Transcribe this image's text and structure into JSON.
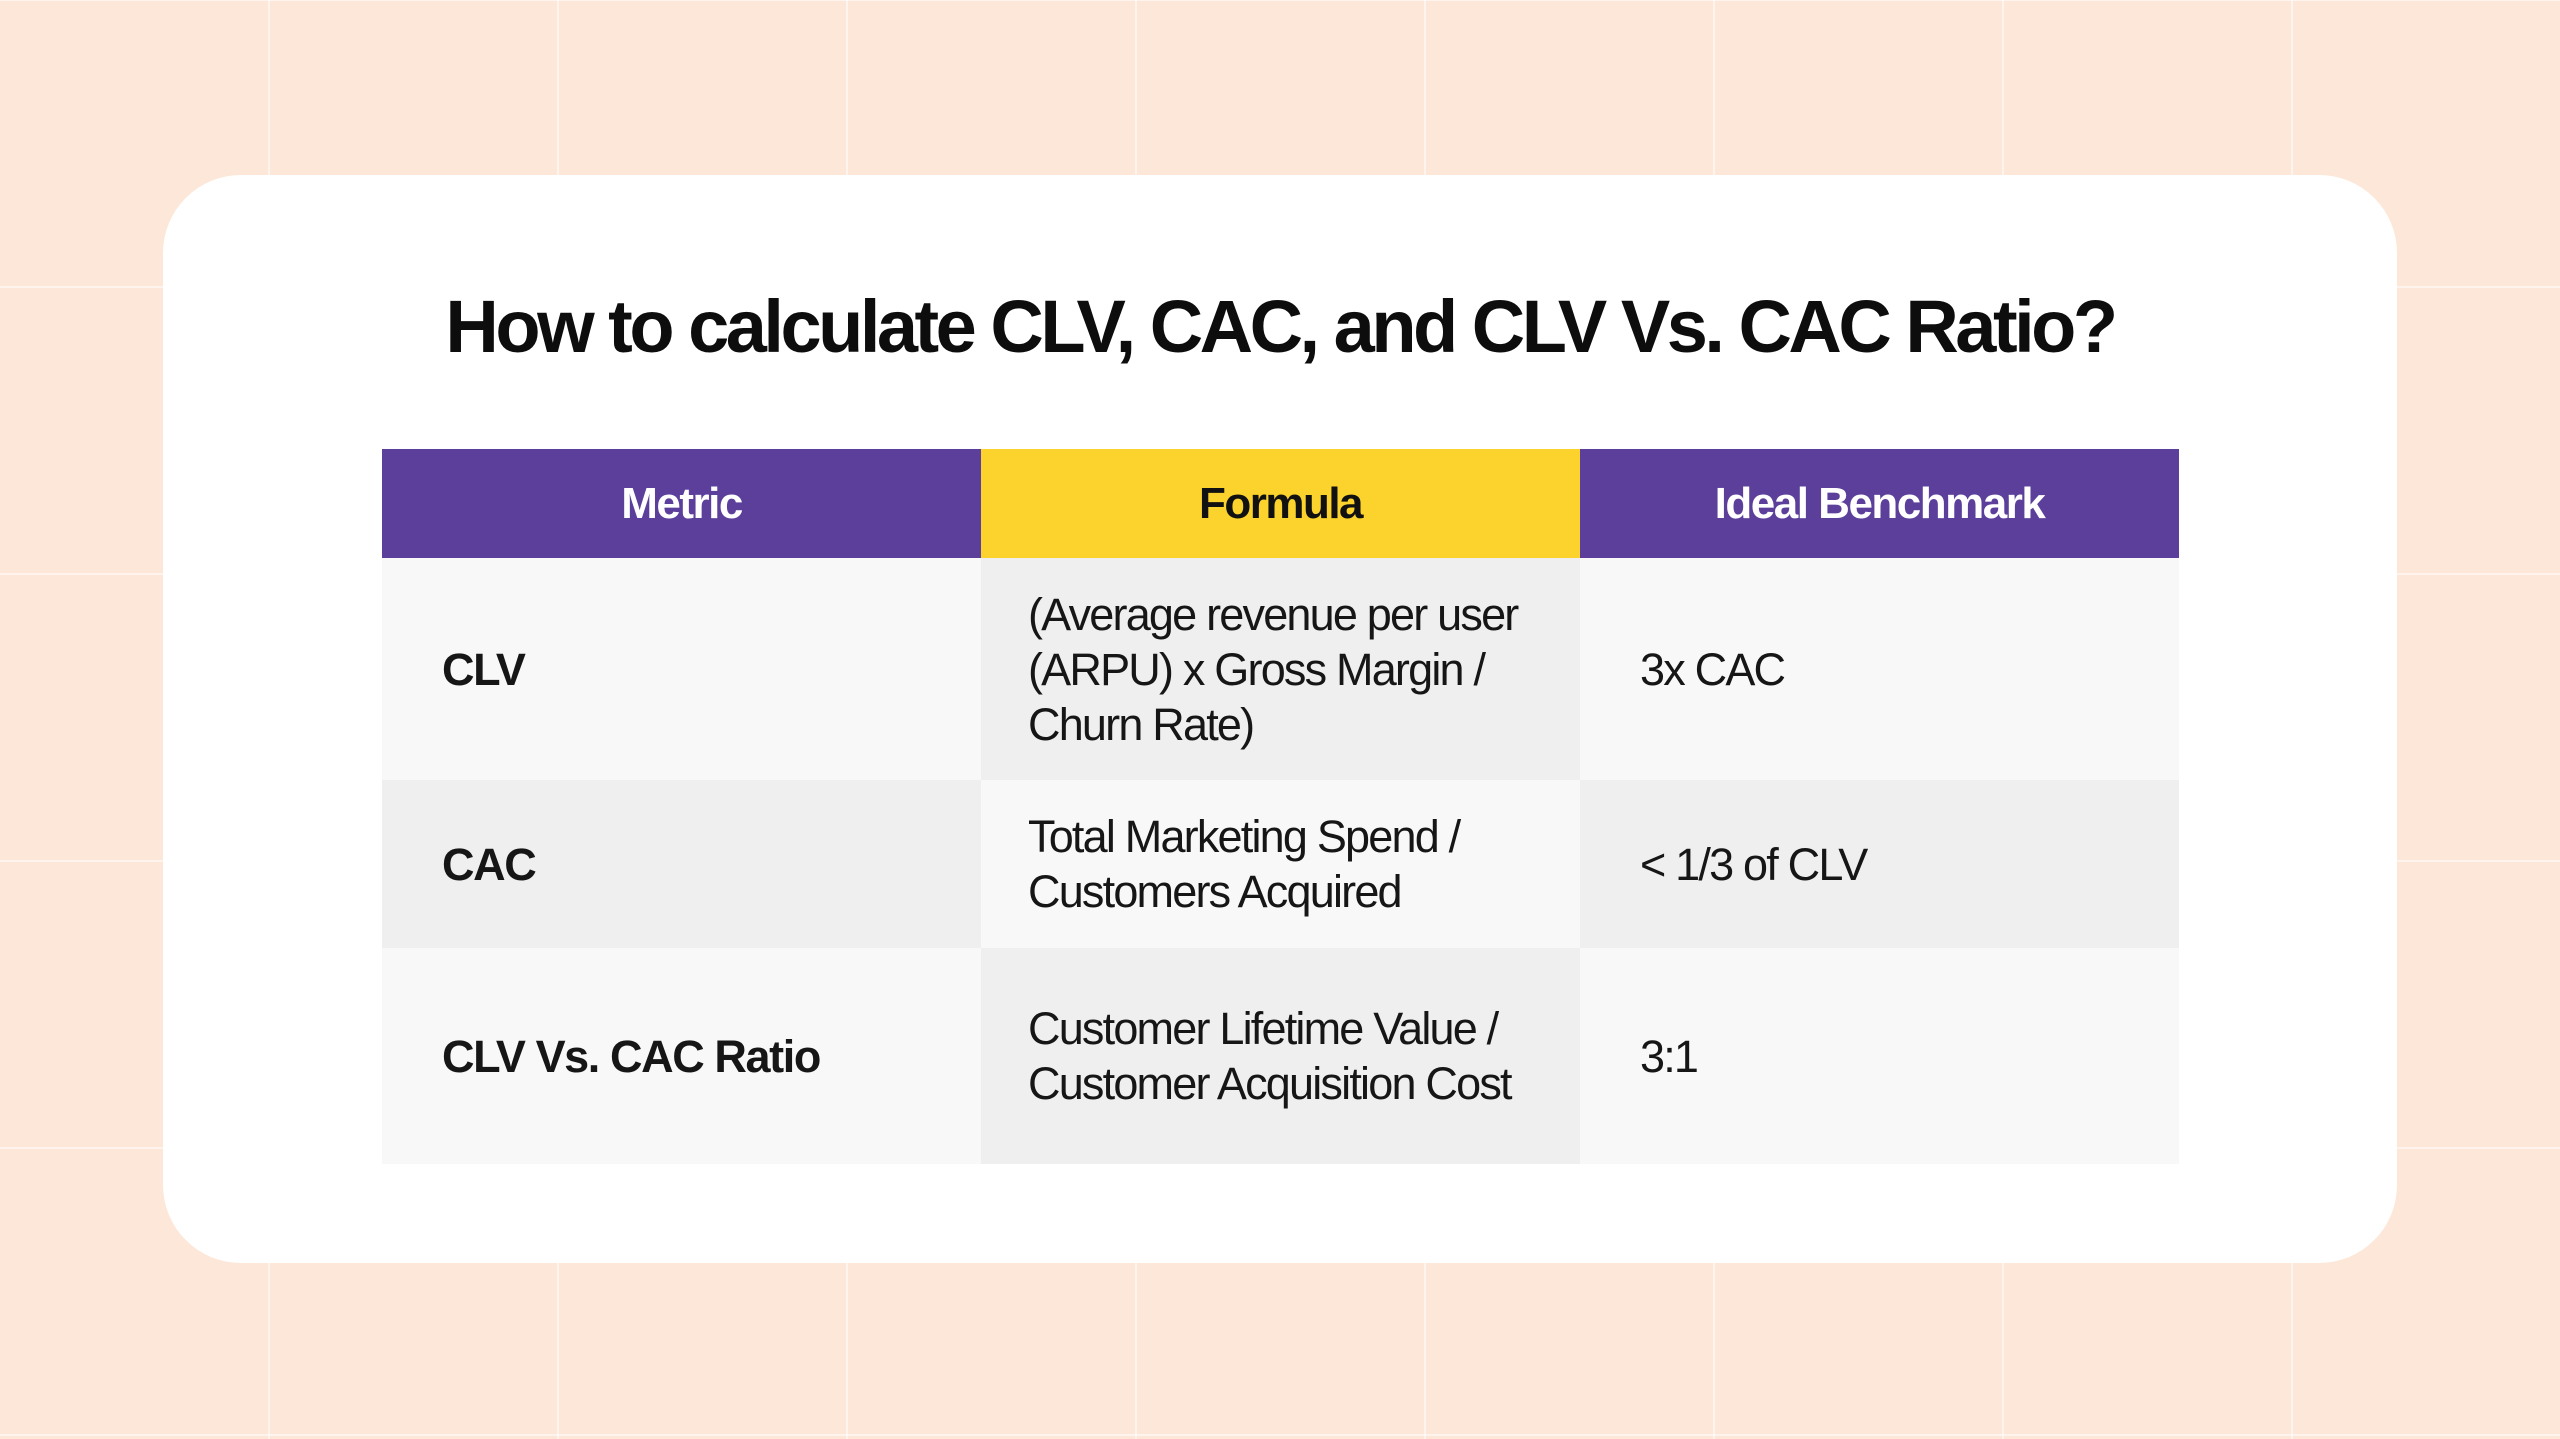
{
  "title": "How to calculate CLV, CAC, and CLV Vs. CAC Ratio?",
  "table": {
    "headers": [
      "Metric",
      "Formula",
      "Ideal Benchmark"
    ],
    "rows": [
      {
        "metric": "CLV",
        "formula": "(Average revenue per user (ARPU) x Gross Margin / Churn Rate)",
        "benchmark": "3x CAC"
      },
      {
        "metric": "CAC",
        "formula": "Total Marketing Spend / Customers Acquired",
        "benchmark": "< 1/3 of CLV"
      },
      {
        "metric": "CLV Vs. CAC Ratio",
        "formula": "Customer Lifetime Value / Customer Acquisition Cost",
        "benchmark": "3:1"
      }
    ]
  },
  "colors": {
    "background": "#fde7d8",
    "card": "#ffffff",
    "header_purple": "#5b3f9b",
    "header_yellow": "#fbd32c",
    "row_light": "#f8f8f8",
    "row_dark": "#efefef"
  }
}
